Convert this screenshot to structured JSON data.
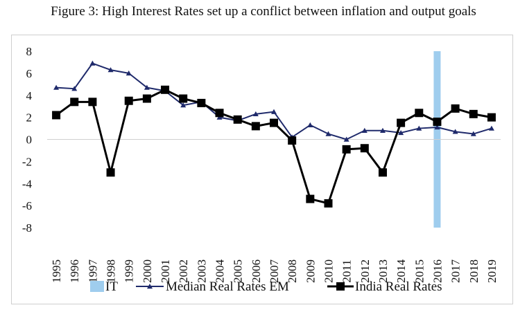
{
  "title": "Figure 3: High Interest Rates set up a conflict between inflation and output goals",
  "chart_data": {
    "type": "line",
    "title": "Figure 3: High Interest Rates set up a conflict between inflation and output goals",
    "xlabel": "",
    "ylabel": "",
    "categories": [
      "1995",
      "1996",
      "1997",
      "1998",
      "1999",
      "2000",
      "2001",
      "2002",
      "2003",
      "2004",
      "2005",
      "2006",
      "2007",
      "2008",
      "2009",
      "2010",
      "2011",
      "2012",
      "2013",
      "2014",
      "2015",
      "2016",
      "2017",
      "2018",
      "2019"
    ],
    "ylim": [
      -8,
      8
    ],
    "yticks": [
      8,
      6,
      4,
      2,
      0,
      -2,
      -4,
      -6,
      -8
    ],
    "grid": false,
    "legend_position": "bottom",
    "highlight": {
      "name": "IT",
      "category": "2016",
      "color": "#9fcdee"
    },
    "series": [
      {
        "name": "Median Real Rates EM",
        "color": "#1f2a6b",
        "marker": "triangle",
        "values": [
          4.7,
          4.6,
          6.9,
          6.3,
          6.0,
          4.7,
          4.4,
          3.1,
          3.4,
          2.0,
          1.7,
          2.3,
          2.5,
          0.2,
          1.3,
          0.5,
          0.0,
          0.8,
          0.8,
          0.6,
          1.0,
          1.1,
          0.7,
          0.5,
          1.0
        ]
      },
      {
        "name": "India Real Rates",
        "color": "#000000",
        "marker": "square",
        "values": [
          2.2,
          3.4,
          3.4,
          -3.0,
          3.5,
          3.7,
          4.5,
          3.7,
          3.3,
          2.4,
          1.8,
          1.2,
          1.5,
          -0.1,
          -5.4,
          -5.8,
          -0.9,
          -0.8,
          -3.0,
          1.5,
          2.4,
          1.6,
          2.8,
          2.3,
          2.0
        ]
      }
    ]
  }
}
